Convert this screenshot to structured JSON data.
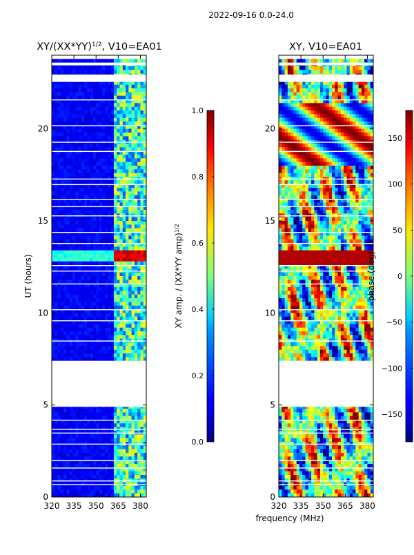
{
  "figure": {
    "suptitle": "2022-09-16 0.0-24.0",
    "xlabel": "frequency (MHz)"
  },
  "chart_data": [
    {
      "type": "heatmap",
      "title": "XY/(XX*YY)",
      "title_sup": "1/2",
      "title_tail": ", V10=EA01",
      "xlabel": "",
      "ylabel": "UT (hours)",
      "xlim": [
        320,
        384
      ],
      "ylim": [
        0,
        24
      ],
      "xticks": [
        320,
        335,
        350,
        365,
        380
      ],
      "yticks": [
        0,
        5,
        10,
        15,
        20
      ],
      "colormap": "jet",
      "colorbar": {
        "label": "XY amp. / (XX*YY amp)",
        "label_sup": "1/2",
        "range": [
          0.0,
          1.0
        ],
        "ticks": [
          "0.0",
          "0.2",
          "0.4",
          "0.6",
          "0.8",
          "1.0"
        ]
      },
      "gaps_hours": [
        [
          7.4,
          4.9
        ],
        [
          22.55,
          22.95
        ],
        [
          23.45,
          23.6
        ],
        [
          23.8,
          24.0
        ]
      ]
    },
    {
      "type": "heatmap",
      "title": "XY, V10=EA01",
      "xlabel": "",
      "ylabel": "",
      "xlim": [
        320,
        384
      ],
      "ylim": [
        0,
        24
      ],
      "xticks": [
        320,
        335,
        350,
        365,
        380
      ],
      "yticks": [
        0,
        5,
        10,
        15,
        20
      ],
      "colormap": "jet",
      "colorbar": {
        "label": "phase (deg)",
        "range": [
          -180,
          180
        ],
        "ticks": [
          "−150",
          "−100",
          "−50",
          "0",
          "50",
          "100",
          "150"
        ]
      },
      "gaps_hours": [
        [
          7.4,
          4.9
        ],
        [
          22.55,
          22.95
        ],
        [
          23.45,
          23.6
        ],
        [
          23.8,
          24.0
        ]
      ]
    }
  ]
}
